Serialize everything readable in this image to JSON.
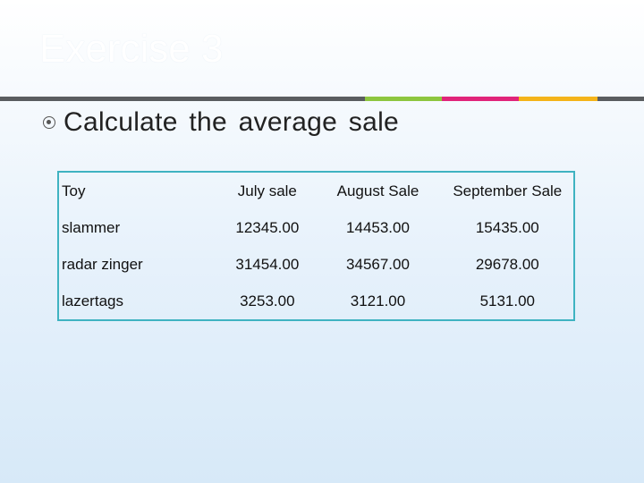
{
  "slide": {
    "title": "Exercise 3",
    "bullet": "Calculate the average sale",
    "accent_colors": [
      "#5a5d60",
      "#8dc63f",
      "#e0247a",
      "#f4b41a",
      "#5a5d60"
    ]
  },
  "table": {
    "headers": [
      "Toy",
      "July sale",
      "August Sale",
      "September Sale"
    ],
    "rows": [
      [
        "slammer",
        "12345.00",
        "14453.00",
        "15435.00"
      ],
      [
        "radar zinger",
        "31454.00",
        "34567.00",
        "29678.00"
      ],
      [
        "lazertags",
        "3253.00",
        "3121.00",
        "5131.00"
      ]
    ]
  }
}
